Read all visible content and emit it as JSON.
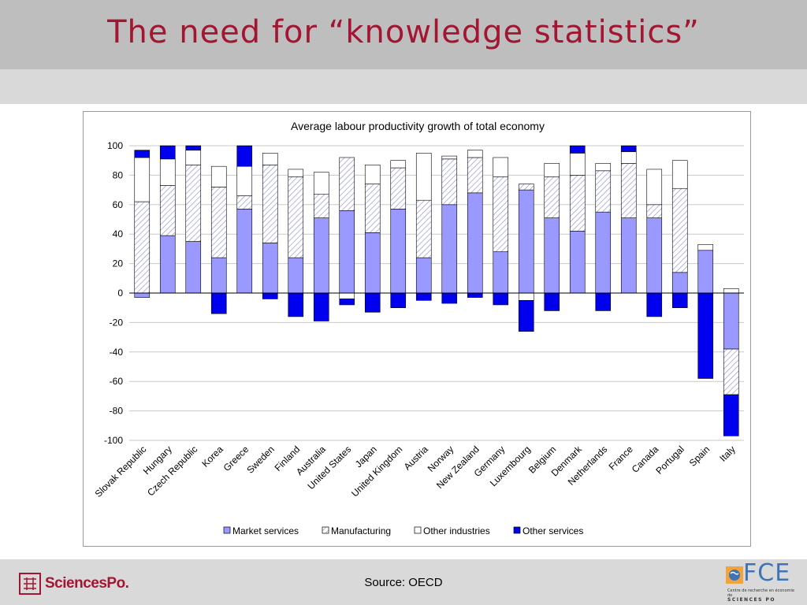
{
  "slide": {
    "title": "The need for “knowledge statistics”",
    "source": "Source: OECD",
    "logo_left": "SciencesPo.",
    "logo_right_letters": "FCE",
    "logo_right_tagline": "Centre de recherche en économie de",
    "logo_right_sub": "SCIENCES PO",
    "colors": {
      "title": "#a31632",
      "band": "#bebebe",
      "footer": "#d9d9d9",
      "fce_blue": "#3f73b8"
    }
  },
  "chart_data": {
    "type": "bar",
    "stacked": true,
    "title": "Average labour productivity growth of total economy",
    "xlabel": "",
    "ylabel": "",
    "ylim": [
      -100,
      100
    ],
    "yticks": [
      100,
      80,
      60,
      40,
      20,
      0,
      -20,
      -40,
      -60,
      -80,
      -100
    ],
    "grid": true,
    "legend_position": "bottom",
    "categories": [
      "Slovak Republic",
      "Hungary",
      "Czech Republic",
      "Korea",
      "Greece",
      "Sweden",
      "Finland",
      "Australia",
      "United States",
      "Japan",
      "United Kingdom",
      "Austria",
      "Norway",
      "New Zealand",
      "Germany",
      "Luxembourg",
      "Belgium",
      "Denmark",
      "Netherlands",
      "France",
      "Canada",
      "Portugal",
      "Spain",
      "Italy"
    ],
    "series": [
      {
        "name": "Market services",
        "color": "#9999ff",
        "pattern": "solid",
        "values": [
          -3,
          39,
          35,
          24,
          57,
          34,
          24,
          51,
          56,
          41,
          57,
          24,
          60,
          68,
          28,
          70,
          51,
          42,
          55,
          51,
          51,
          14,
          29,
          -38
        ]
      },
      {
        "name": "Manufacturing",
        "color": "#ffffff",
        "pattern": "diagonal-hatch",
        "values": [
          62,
          34,
          52,
          48,
          9,
          53,
          55,
          16,
          36,
          33,
          28,
          39,
          31,
          24,
          51,
          4,
          28,
          38,
          28,
          37,
          9,
          57,
          0,
          -31
        ]
      },
      {
        "name": "Other industries",
        "color": "#ffffff",
        "pattern": "solid",
        "values": [
          30,
          18,
          10,
          14,
          20,
          8,
          5,
          15,
          -4,
          13,
          5,
          32,
          2,
          5,
          13,
          -5,
          9,
          15,
          5,
          8,
          24,
          19,
          4,
          3
        ]
      },
      {
        "name": "Other services",
        "color": "#0000ee",
        "pattern": "solid",
        "values": [
          5,
          9,
          3,
          -14,
          14,
          -4,
          -16,
          -19,
          -4,
          -13,
          -10,
          -5,
          -7,
          -3,
          -8,
          -21,
          -12,
          5,
          -12,
          4,
          -16,
          -10,
          -58,
          -28
        ]
      }
    ]
  }
}
